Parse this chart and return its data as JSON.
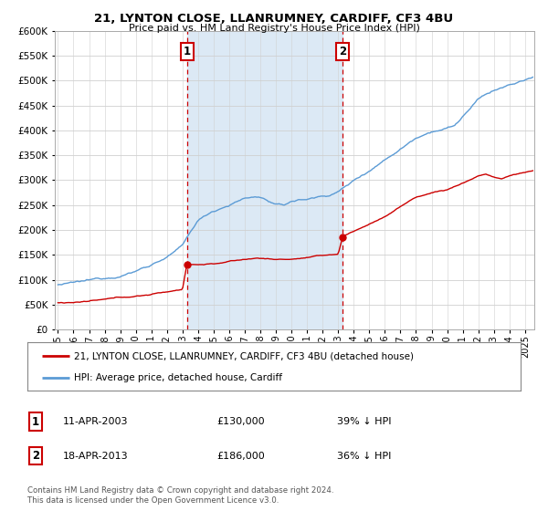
{
  "title1": "21, LYNTON CLOSE, LLANRUMNEY, CARDIFF, CF3 4BU",
  "title2": "Price paid vs. HM Land Registry's House Price Index (HPI)",
  "legend_line1": "21, LYNTON CLOSE, LLANRUMNEY, CARDIFF, CF3 4BU (detached house)",
  "legend_line2": "HPI: Average price, detached house, Cardiff",
  "marker1_label": "1",
  "marker1_date": "11-APR-2003",
  "marker1_price": "£130,000",
  "marker1_hpi": "39% ↓ HPI",
  "marker1_year": 2003.28,
  "marker1_price_val": 130000,
  "marker2_label": "2",
  "marker2_date": "18-APR-2013",
  "marker2_price": "£186,000",
  "marker2_hpi": "36% ↓ HPI",
  "marker2_year": 2013.3,
  "marker2_price_val": 186000,
  "copyright": "Contains HM Land Registry data © Crown copyright and database right 2024.\nThis data is licensed under the Open Government Licence v3.0.",
  "red_color": "#cc0000",
  "blue_color": "#5b9bd5",
  "shade_color": "#dce9f5",
  "background_color": "#ffffff",
  "plot_bg_color": "#ffffff",
  "grid_color": "#d0d0d0",
  "ylim": [
    0,
    600000
  ],
  "xlim_start": 1994.8,
  "xlim_end": 2025.6
}
